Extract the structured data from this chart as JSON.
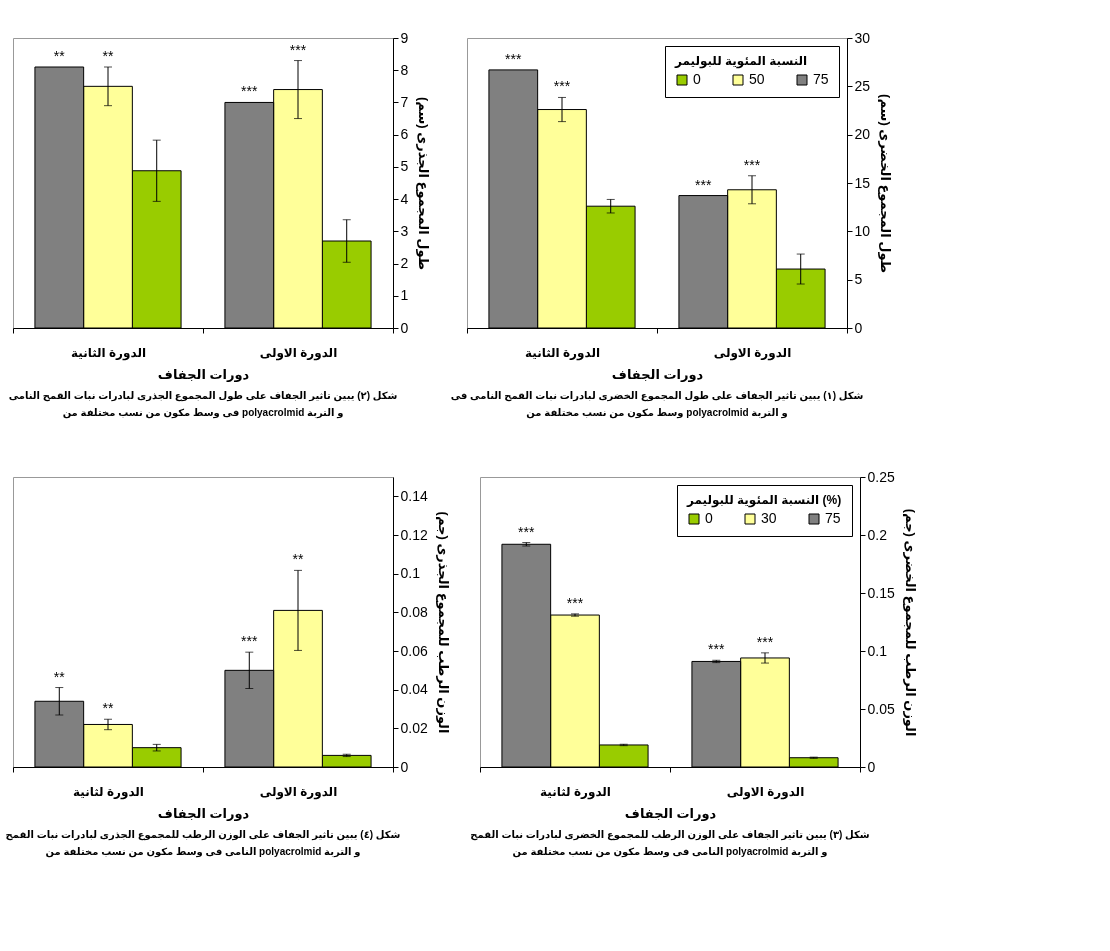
{
  "chart_data": [
    {
      "type": "bar",
      "categories": [
        "الدورة الثانية",
        "الدورة الاولى"
      ],
      "xlabel": "دورات الجفاف",
      "ylabel": "طول المجموع الجذرى (سم)",
      "ylim": [
        0,
        9
      ],
      "yticks": [
        0,
        1,
        2,
        3,
        4,
        5,
        6,
        7,
        8,
        9
      ],
      "legend": false,
      "annotations": [
        "شكل (٢) يبين تاثير الجفاف على طول المجموع الجذرى لبادرات نبات القمح النامى",
        "فى وسط مكون من نسب مختلفة من polyacrolmid و التربة"
      ],
      "series": [
        {
          "color": "#99cc00",
          "values": [
            4.88,
            2.7
          ],
          "errors": [
            0.95,
            0.66
          ]
        },
        {
          "color": "#ffff99",
          "values": [
            7.5,
            7.4
          ],
          "errors": [
            0.6,
            0.9
          ],
          "value_labels": [
            "**",
            "***"
          ]
        },
        {
          "color": "#808080",
          "values": [
            8.1,
            7.0
          ],
          "value_labels": [
            "**",
            "***"
          ]
        }
      ]
    },
    {
      "type": "bar",
      "categories": [
        "الدورة الثانية",
        "الدورة الاولى"
      ],
      "xlabel": "دورات الجفاف",
      "ylabel": "طول المجموع الخضرى (سم)",
      "ylim": [
        0,
        30
      ],
      "yticks": [
        0,
        5,
        10,
        15,
        20,
        25,
        30
      ],
      "legend": "top right",
      "legend_title": "النسبة المئوية للبوليمر",
      "annotations": [
        "شكل (١) يبين تاثير الجفاف على طول المجموع الخضرى لبادرات نبات القمح النامى فى",
        "وسط مكون من نسب مختلفة من polyacrolmid و التربة"
      ],
      "series": [
        {
          "name": "0",
          "color": "#99cc00",
          "values": [
            12.6,
            6.1
          ],
          "errors": [
            0.7,
            1.55
          ]
        },
        {
          "name": "50",
          "color": "#ffff99",
          "values": [
            22.6,
            14.3
          ],
          "errors": [
            1.25,
            1.45
          ],
          "value_labels": [
            "***",
            "***"
          ]
        },
        {
          "name": "75",
          "color": "#808080",
          "values": [
            26.7,
            13.7
          ],
          "value_labels": [
            "***",
            "***"
          ]
        }
      ]
    },
    {
      "type": "bar",
      "categories": [
        "الدورة لثانية",
        "الدورة الاولى"
      ],
      "xlabel": "دورات الجفاف",
      "ylabel": "الوزن الرطب للمجموع الجذرى (جم)",
      "ylim": [
        0,
        0.15
      ],
      "yticks": [
        0,
        0.02,
        0.04,
        0.06,
        0.08,
        0.1,
        0.12,
        0.14
      ],
      "legend": false,
      "annotations": [
        "شكل (٤) يبين تاثير الجفاف على الوزن الرطب للمجموع الجذرى لبادرات نبات القمح",
        "النامى فى وسط مكون من نسب مختلفة من polyacrolmid و التربة"
      ],
      "series": [
        {
          "color": "#99cc00",
          "values": [
            0.01,
            0.006
          ],
          "errors": [
            0.0017,
            0.0006
          ]
        },
        {
          "color": "#ffff99",
          "values": [
            0.022,
            0.081
          ],
          "errors": [
            0.0027,
            0.0207
          ],
          "value_labels": [
            "**",
            "**"
          ]
        },
        {
          "color": "#808080",
          "values": [
            0.034,
            0.05
          ],
          "errors": [
            0.0071,
            0.0094
          ],
          "value_labels": [
            "**",
            "***"
          ]
        }
      ]
    },
    {
      "type": "bar",
      "categories": [
        "الدورة لثانية",
        "الدورة الاولى"
      ],
      "xlabel": "دورات الجفاف",
      "ylabel": "الوزن الرطب للمجموع الخضرى (جم)",
      "ylim": [
        0,
        0.25
      ],
      "yticks": [
        0,
        0.05,
        0.1,
        0.15,
        0.2,
        0.25
      ],
      "legend": "top right",
      "legend_title": "النسبة المئوية للبوليمر (%)",
      "annotations": [
        "شكل (٣) يبين تاثير الجفاف على الوزن الرطب للمجموع الخضرى لبادرات نبات القمح",
        "النامى فى وسط مكون من نسب مختلفة من polyacrolmid و التربة"
      ],
      "series": [
        {
          "name": "0",
          "color": "#99cc00",
          "values": [
            0.019,
            0.008
          ],
          "errors": [
            0.0006,
            0.0005
          ]
        },
        {
          "name": "30",
          "color": "#ffff99",
          "values": [
            0.131,
            0.094
          ],
          "errors": [
            0.001,
            0.0044
          ],
          "value_labels": [
            "***",
            "***"
          ]
        },
        {
          "name": "75",
          "color": "#808080",
          "values": [
            0.192,
            0.091
          ],
          "errors": [
            0.0015,
            0.001
          ],
          "value_labels": [
            "***",
            "***"
          ]
        }
      ]
    }
  ]
}
